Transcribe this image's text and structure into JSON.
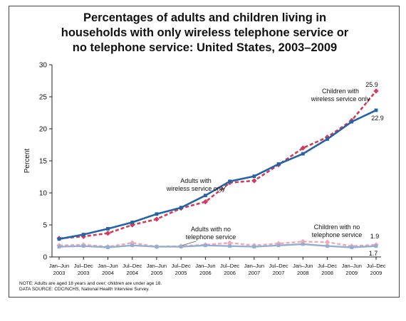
{
  "title_lines": [
    "Percentages of adults and children living in",
    "households with only wireless telephone service or",
    "no telephone service: United States, 2003–2009"
  ],
  "notes": [
    "NOTE: Adults are aged 18 years and over; children are under age 18.",
    "DATA SOURCE: CDC/NCHS, National Health Interview Survey."
  ],
  "colors": {
    "adults_wireless": "#2563a8",
    "children_wireless": "#d23c5c",
    "adults_no_phone": "#94aed2",
    "children_no_phone": "#f0a7b8"
  },
  "chart_data": {
    "type": "line",
    "title": "Percentages of adults and children living in households with only wireless telephone service or no telephone service: United States, 2003–2009",
    "ylabel": "Percent",
    "ylim": [
      0,
      30
    ],
    "yticks": [
      0,
      5,
      10,
      15,
      20,
      25,
      30
    ],
    "grid": false,
    "categories": [
      [
        "Jan–Jun",
        "2003"
      ],
      [
        "Jul–Dec",
        "2003"
      ],
      [
        "Jan–Jun",
        "2004"
      ],
      [
        "Jul–Dec",
        "2004"
      ],
      [
        "Jan–Jun",
        "2005"
      ],
      [
        "Jul–Dec",
        "2005"
      ],
      [
        "Jan–Jun",
        "2006"
      ],
      [
        "Jul–Dec",
        "2006"
      ],
      [
        "Jan–Jun",
        "2007"
      ],
      [
        "Jul–Dec",
        "2007"
      ],
      [
        "Jan–Jun",
        "2008"
      ],
      [
        "Jul–Dec",
        "2008"
      ],
      [
        "Jan–Jun",
        "2009"
      ],
      [
        "Jul–Dec",
        "2009"
      ]
    ],
    "series": [
      {
        "key": "adults_wireless",
        "label_lines": [
          "Adults with",
          "wireless service only"
        ],
        "style": "solid",
        "values": [
          2.8,
          3.5,
          4.4,
          5.4,
          6.7,
          7.7,
          9.6,
          11.8,
          12.6,
          14.5,
          16.1,
          18.4,
          21.1,
          22.9
        ],
        "end_label": "22.9"
      },
      {
        "key": "children_wireless",
        "label_lines": [
          "Children with",
          "wireless service only"
        ],
        "style": "dashed",
        "values": [
          2.9,
          3.2,
          3.7,
          5.0,
          5.9,
          7.6,
          8.6,
          11.6,
          11.9,
          14.4,
          17.0,
          18.7,
          21.3,
          25.9
        ],
        "end_label": "25.9"
      },
      {
        "key": "adults_no_phone",
        "label_lines": [
          "Adults with no",
          "telephone service"
        ],
        "style": "solid",
        "values": [
          1.6,
          1.7,
          1.5,
          1.8,
          1.6,
          1.6,
          1.8,
          1.7,
          1.6,
          1.8,
          2.0,
          1.7,
          1.5,
          1.7
        ],
        "end_label": "1.7"
      },
      {
        "key": "children_no_phone",
        "label_lines": [
          "Children with no",
          "telephone service"
        ],
        "style": "dashed",
        "values": [
          1.8,
          1.9,
          1.6,
          2.2,
          1.6,
          1.7,
          1.9,
          2.2,
          1.8,
          2.1,
          2.4,
          2.3,
          1.7,
          1.9
        ],
        "end_label": "1.9"
      }
    ]
  }
}
